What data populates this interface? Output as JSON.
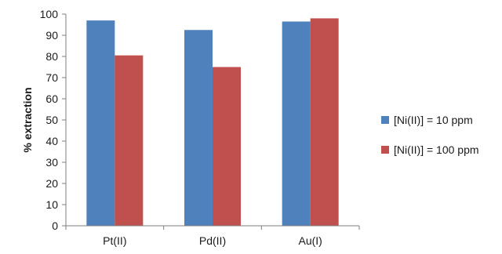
{
  "chart_data": {
    "type": "bar",
    "categories": [
      "Pt(II)",
      "Pd(II)",
      "Au(I)"
    ],
    "series": [
      {
        "name": "[Ni(II)] = 10 ppm",
        "values": [
          97,
          92.5,
          96.5
        ],
        "color": "#4f81bd"
      },
      {
        "name": "[Ni(II)] = 100 ppm",
        "values": [
          80.5,
          75,
          98
        ],
        "color": "#c0504d"
      }
    ],
    "title": "",
    "xlabel": "",
    "ylabel": "% extraction",
    "ylim": [
      0,
      100
    ],
    "yticks": [
      0,
      10,
      20,
      30,
      40,
      50,
      60,
      70,
      80,
      90,
      100
    ],
    "grid": false,
    "legend_position": "right"
  }
}
